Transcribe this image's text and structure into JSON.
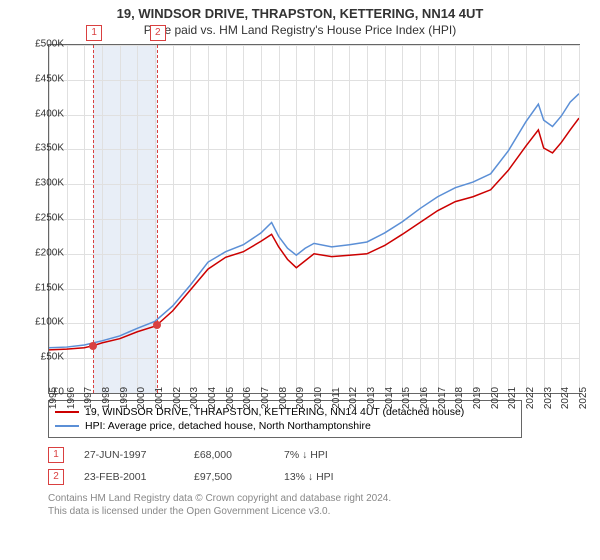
{
  "title": "19, WINDSOR DRIVE, THRAPSTON, KETTERING, NN14 4UT",
  "subtitle": "Price paid vs. HM Land Registry's House Price Index (HPI)",
  "chart": {
    "type": "line",
    "background_color": "#ffffff",
    "grid_color": "#e0e0e0",
    "border_color": "#666666",
    "ylim": [
      0,
      500000
    ],
    "ytick_step": 50000,
    "yticks": [
      "£0",
      "£50K",
      "£100K",
      "£150K",
      "£200K",
      "£250K",
      "£300K",
      "£350K",
      "£400K",
      "£450K",
      "£500K"
    ],
    "xlim": [
      1995,
      2025
    ],
    "xticks": [
      1995,
      1996,
      1997,
      1998,
      1999,
      2000,
      2001,
      2002,
      2003,
      2004,
      2005,
      2006,
      2007,
      2008,
      2009,
      2010,
      2011,
      2012,
      2013,
      2014,
      2015,
      2016,
      2017,
      2018,
      2019,
      2020,
      2021,
      2022,
      2023,
      2024,
      2025
    ],
    "band": {
      "start": 1997.5,
      "end": 2001.1,
      "color": "#e8eef7"
    },
    "marker_lines": [
      {
        "id": "1",
        "year": 1997.5
      },
      {
        "id": "2",
        "year": 2001.1
      }
    ],
    "markers": [
      {
        "id": "1",
        "year": 1997.5,
        "value": 68000
      },
      {
        "id": "2",
        "year": 2001.1,
        "value": 97500
      }
    ],
    "series": [
      {
        "name": "price_paid",
        "color": "#cc0000",
        "width": 1.5,
        "data": [
          [
            1995,
            62000
          ],
          [
            1996,
            63000
          ],
          [
            1997,
            65000
          ],
          [
            1997.5,
            68000
          ],
          [
            1998,
            72000
          ],
          [
            1999,
            78000
          ],
          [
            2000,
            88000
          ],
          [
            2001,
            96000
          ],
          [
            2001.1,
            97500
          ],
          [
            2002,
            118000
          ],
          [
            2003,
            148000
          ],
          [
            2004,
            178000
          ],
          [
            2005,
            195000
          ],
          [
            2006,
            203000
          ],
          [
            2007,
            218000
          ],
          [
            2007.6,
            228000
          ],
          [
            2008,
            210000
          ],
          [
            2008.5,
            192000
          ],
          [
            2009,
            180000
          ],
          [
            2009.5,
            190000
          ],
          [
            2010,
            200000
          ],
          [
            2011,
            196000
          ],
          [
            2012,
            198000
          ],
          [
            2013,
            200000
          ],
          [
            2014,
            212000
          ],
          [
            2015,
            228000
          ],
          [
            2016,
            245000
          ],
          [
            2017,
            262000
          ],
          [
            2018,
            275000
          ],
          [
            2019,
            282000
          ],
          [
            2020,
            292000
          ],
          [
            2021,
            320000
          ],
          [
            2022,
            355000
          ],
          [
            2022.7,
            378000
          ],
          [
            2023,
            352000
          ],
          [
            2023.5,
            345000
          ],
          [
            2024,
            360000
          ],
          [
            2024.5,
            378000
          ],
          [
            2025,
            395000
          ]
        ]
      },
      {
        "name": "hpi",
        "color": "#5b8fd6",
        "width": 1.5,
        "data": [
          [
            1995,
            65000
          ],
          [
            1996,
            66000
          ],
          [
            1997,
            69000
          ],
          [
            1998,
            75000
          ],
          [
            1999,
            82000
          ],
          [
            2000,
            93000
          ],
          [
            2001,
            103000
          ],
          [
            2002,
            125000
          ],
          [
            2003,
            155000
          ],
          [
            2004,
            188000
          ],
          [
            2005,
            203000
          ],
          [
            2006,
            213000
          ],
          [
            2007,
            230000
          ],
          [
            2007.6,
            245000
          ],
          [
            2008,
            225000
          ],
          [
            2008.5,
            208000
          ],
          [
            2009,
            198000
          ],
          [
            2009.5,
            208000
          ],
          [
            2010,
            215000
          ],
          [
            2011,
            210000
          ],
          [
            2012,
            213000
          ],
          [
            2013,
            217000
          ],
          [
            2014,
            230000
          ],
          [
            2015,
            246000
          ],
          [
            2016,
            265000
          ],
          [
            2017,
            282000
          ],
          [
            2018,
            295000
          ],
          [
            2019,
            303000
          ],
          [
            2020,
            315000
          ],
          [
            2021,
            348000
          ],
          [
            2022,
            390000
          ],
          [
            2022.7,
            415000
          ],
          [
            2023,
            392000
          ],
          [
            2023.5,
            383000
          ],
          [
            2024,
            398000
          ],
          [
            2024.5,
            418000
          ],
          [
            2025,
            430000
          ]
        ]
      }
    ]
  },
  "legend": {
    "items": [
      {
        "color": "#cc0000",
        "label": "19, WINDSOR DRIVE, THRAPSTON, KETTERING, NN14 4UT (detached house)"
      },
      {
        "color": "#5b8fd6",
        "label": "HPI: Average price, detached house, North Northamptonshire"
      }
    ]
  },
  "transactions": [
    {
      "id": "1",
      "date": "27-JUN-1997",
      "price": "£68,000",
      "hpi": "7% ↓ HPI"
    },
    {
      "id": "2",
      "date": "23-FEB-2001",
      "price": "£97,500",
      "hpi": "13% ↓ HPI"
    }
  ],
  "footer": {
    "line1": "Contains HM Land Registry data © Crown copyright and database right 2024.",
    "line2": "This data is licensed under the Open Government Licence v3.0."
  }
}
